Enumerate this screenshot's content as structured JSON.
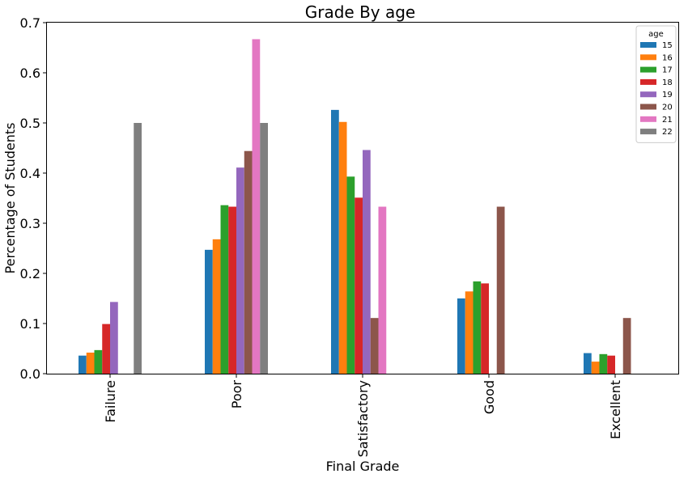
{
  "chart_data": {
    "type": "bar",
    "title": "Grade By age",
    "xlabel": "Final Grade",
    "ylabel": "Percentage of Students",
    "ylim": [
      0,
      0.7
    ],
    "yticks": [
      "0.0",
      "0.1",
      "0.2",
      "0.3",
      "0.4",
      "0.5",
      "0.6",
      "0.7"
    ],
    "categories": [
      "Failure",
      "Poor",
      "Satisfactory",
      "Good",
      "Excellent"
    ],
    "legend_title": "age",
    "legend_position": "top-right",
    "series": [
      {
        "name": "15",
        "color": "#1f77b4",
        "values": [
          0.036,
          0.247,
          0.526,
          0.15,
          0.041
        ]
      },
      {
        "name": "16",
        "color": "#ff7f0e",
        "values": [
          0.042,
          0.268,
          0.502,
          0.164,
          0.024
        ]
      },
      {
        "name": "17",
        "color": "#2ca02c",
        "values": [
          0.047,
          0.336,
          0.393,
          0.184,
          0.039
        ]
      },
      {
        "name": "18",
        "color": "#d62728",
        "values": [
          0.099,
          0.333,
          0.351,
          0.18,
          0.036
        ]
      },
      {
        "name": "19",
        "color": "#9467bd",
        "values": [
          0.143,
          0.411,
          0.446,
          0.0,
          0.0
        ]
      },
      {
        "name": "20",
        "color": "#8c564b",
        "values": [
          0.0,
          0.444,
          0.111,
          0.333,
          0.111
        ]
      },
      {
        "name": "21",
        "color": "#e377c2",
        "values": [
          0.0,
          0.667,
          0.333,
          0.0,
          0.0
        ]
      },
      {
        "name": "22",
        "color": "#7f7f7f",
        "values": [
          0.5,
          0.5,
          0.0,
          0.0,
          0.0
        ]
      }
    ]
  }
}
